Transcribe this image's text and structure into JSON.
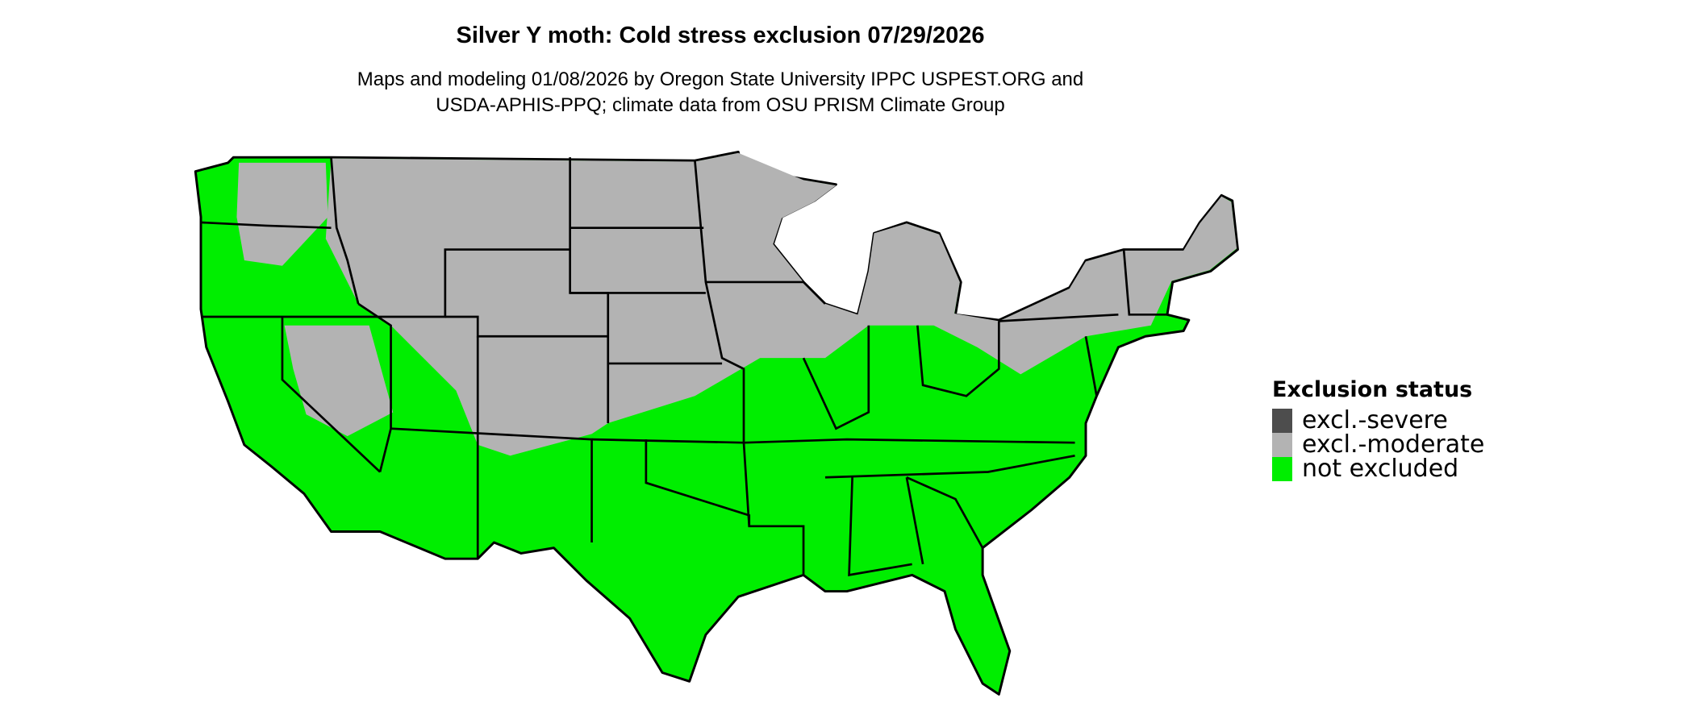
{
  "title": "Silver Y moth: Cold stress exclusion 07/29/2026",
  "subtitle_lines": [
    "Maps and modeling 01/08/2026 by Oregon State University IPPC USPEST.ORG and",
    "USDA-APHIS-PPQ; climate data from OSU PRISM Climate Group"
  ],
  "legend": {
    "title": "Exclusion status",
    "items": [
      {
        "label": "excl.-severe",
        "color": "#4d4d4d"
      },
      {
        "label": "excl.-moderate",
        "color": "#b3b3b3"
      },
      {
        "label": "not excluded",
        "color": "#00ee00"
      }
    ]
  },
  "map": {
    "region": "contiguous United States",
    "border_color": "#000000",
    "base_color": "#00ee00",
    "excluded_color": "#b3b3b3"
  }
}
